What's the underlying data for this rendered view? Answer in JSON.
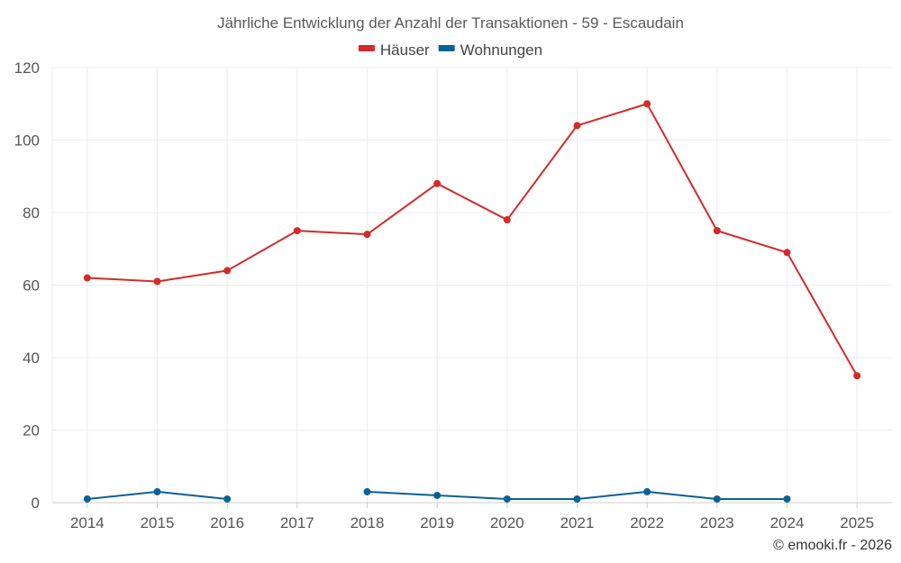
{
  "chart_data": {
    "type": "line",
    "title": "Jährliche Entwicklung der Anzahl der Transaktionen - 59 - Escaudain",
    "categories": [
      "2014",
      "2015",
      "2016",
      "2017",
      "2018",
      "2019",
      "2020",
      "2021",
      "2022",
      "2023",
      "2024",
      "2025"
    ],
    "series": [
      {
        "name": "Häuser",
        "color": "#d42a2a",
        "values": [
          62,
          61,
          64,
          75,
          74,
          88,
          78,
          104,
          110,
          75,
          69,
          35
        ]
      },
      {
        "name": "Wohnungen",
        "color": "#0a6195",
        "values": [
          1,
          3,
          1,
          null,
          3,
          2,
          1,
          1,
          3,
          1,
          1,
          null
        ]
      }
    ],
    "ylim": [
      0,
      120
    ],
    "yticks": [
      0,
      20,
      40,
      60,
      80,
      100,
      120
    ],
    "xlabel": "",
    "ylabel": "",
    "grid": true,
    "legend": "top-center"
  },
  "credit": "© emooki.fr - 2026"
}
